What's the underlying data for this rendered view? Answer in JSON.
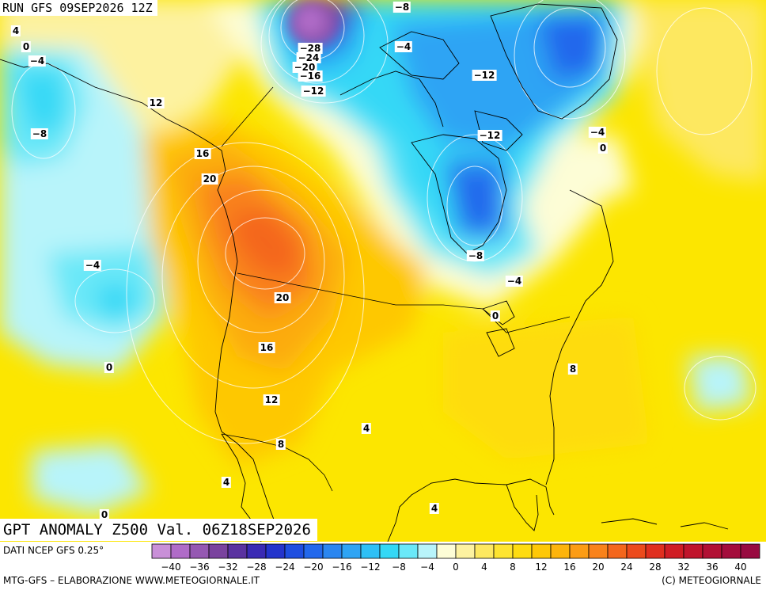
{
  "header": {
    "run_label": "RUN GFS 09SEP2026 12Z"
  },
  "title": {
    "text": "GPT ANOMALY Z500 Val. 06Z18SEP2026"
  },
  "footer": {
    "source": "DATI NCEP GFS 0.25°",
    "elaboration": "MTG-GFS – ELABORAZIONE WWW.METEOGIORNALE.IT",
    "copyright": "(C) METEOGIORNALE"
  },
  "legend": {
    "labels": [
      "−40",
      "−36",
      "−32",
      "−28",
      "−24",
      "−20",
      "−16",
      "−12",
      "−8",
      "−4",
      "0",
      "4",
      "8",
      "12",
      "16",
      "20",
      "24",
      "28",
      "32",
      "36",
      "40"
    ],
    "colors": [
      "#c990d8",
      "#b06cc8",
      "#9558b2",
      "#7a429e",
      "#5a32a0",
      "#3a2ab4",
      "#2434cc",
      "#1e4ee0",
      "#2268ec",
      "#2a86f0",
      "#2ea4f4",
      "#2ec0f6",
      "#34d8f6",
      "#6ae8f8",
      "#b8f4fa",
      "#fdfdd6",
      "#fdf2a0",
      "#fde860",
      "#fee430",
      "#fedc10",
      "#fec806",
      "#fdb40c",
      "#fc9c14",
      "#f9821a",
      "#f4661c",
      "#ec4a1c",
      "#e02e1e",
      "#d01c24",
      "#c0142c",
      "#b21034",
      "#a40c3c",
      "#980a40"
    ]
  },
  "contour_labels": [
    {
      "text": "−8",
      "name": "label-minus8-north"
    },
    {
      "text": "−28",
      "name": "label-minus28"
    },
    {
      "text": "−24",
      "name": "label-minus24"
    },
    {
      "text": "−20",
      "name": "label-minus20"
    },
    {
      "text": "−16",
      "name": "label-minus16"
    },
    {
      "text": "−12",
      "name": "label-minus12-nw"
    },
    {
      "text": "−4",
      "name": "label-minus4-archipelago"
    },
    {
      "text": "−12",
      "name": "label-minus12-greenland"
    },
    {
      "text": "−12",
      "name": "label-minus12-hudson"
    },
    {
      "text": "−4",
      "name": "label-minus4-east"
    },
    {
      "text": "0",
      "name": "label-0-east"
    },
    {
      "text": "−8",
      "name": "label-minus8-hudson"
    },
    {
      "text": "−4",
      "name": "label-minus4-quebec"
    },
    {
      "text": "0",
      "name": "label-0-lakes"
    },
    {
      "text": "4",
      "name": "label-4-topleft"
    },
    {
      "text": "0",
      "name": "label-0-topleft"
    },
    {
      "text": "−4",
      "name": "label-minus4-topleft"
    },
    {
      "text": "−8",
      "name": "label-minus8-pacific"
    },
    {
      "text": "12",
      "name": "label-12-alaska"
    },
    {
      "text": "16",
      "name": "label-16-coast"
    },
    {
      "text": "20",
      "name": "label-20-coast"
    },
    {
      "text": "−4",
      "name": "label-minus4-pacific"
    },
    {
      "text": "20",
      "name": "label-20-border"
    },
    {
      "text": "16",
      "name": "label-16-west"
    },
    {
      "text": "12",
      "name": "label-12-west"
    },
    {
      "text": "8",
      "name": "label-8-southwest"
    },
    {
      "text": "0",
      "name": "label-0-pacific"
    },
    {
      "text": "4",
      "name": "label-4-plains"
    },
    {
      "text": "8",
      "name": "label-8-east"
    },
    {
      "text": "4",
      "name": "label-4-mexico"
    },
    {
      "text": "4",
      "name": "label-4-gulf"
    },
    {
      "text": "0",
      "name": "label-0-bottomleft"
    }
  ]
}
